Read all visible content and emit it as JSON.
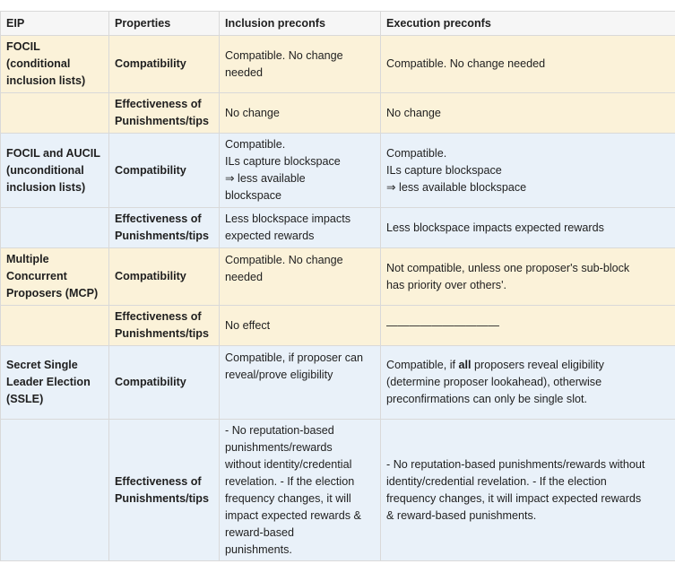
{
  "headers": [
    "EIP",
    "Properties",
    "Inclusion preconfs",
    "Execution preconfs"
  ],
  "rows": [
    {
      "eip": [
        "FOCIL",
        "(conditional",
        "inclusion lists)"
      ],
      "property": "Compatibility",
      "inclusion": [
        "Compatible. No change",
        "needed"
      ],
      "execution": [
        "Compatible. No change needed"
      ]
    },
    {
      "eip": [],
      "property": "Effectiveness of Punishments/tips",
      "inclusion": [
        "No change"
      ],
      "execution": [
        "No change"
      ]
    },
    {
      "eip": [
        "FOCIL and AUCIL",
        "(unconditional",
        "inclusion lists)"
      ],
      "property": "Compatibility",
      "inclusion": [
        "Compatible.",
        "ILs capture blockspace",
        "⇒ less available",
        "blockspace"
      ],
      "execution": [
        "Compatible.",
        "ILs capture blockspace",
        "⇒ less available blockspace"
      ]
    },
    {
      "eip": [],
      "property": "Effectiveness of Punishments/tips",
      "inclusion": [
        "Less blockspace impacts",
        "expected rewards"
      ],
      "execution": [
        "Less blockspace impacts expected rewards"
      ]
    },
    {
      "eip": [
        "Multiple",
        "Concurrent",
        "Proposers (MCP)"
      ],
      "property": "Compatibility",
      "inclusion": [
        "Compatible. No change",
        "needed"
      ],
      "execution": [
        "Not compatible, unless one proposer's sub-block",
        "has priority over others'."
      ]
    },
    {
      "eip": [],
      "property": "Effectiveness of Punishments/tips",
      "inclusion": [
        "No effect"
      ],
      "execution": [
        "——————————"
      ]
    },
    {
      "eip": [
        "Secret Single",
        "Leader Election",
        "(SSLE)"
      ],
      "property": "Compatibility",
      "inclusion": [
        "Compatible, if proposer can",
        "reveal/prove eligibility"
      ],
      "execution_parts": {
        "pre": "Compatible, if ",
        "bold": "all",
        "post": " proposers reveal eligibility"
      },
      "execution": [
        "(determine proposer lookahead), otherwise",
        "preconfirmations can only be single slot."
      ]
    },
    {
      "eip": [],
      "property": "Effectiveness of Punishments/tips",
      "inclusion": [
        "- No reputation-based",
        "punishments/rewards",
        "without identity/credential",
        "revelation. - If the election",
        "frequency changes, it will",
        "impact expected rewards &",
        "reward-based",
        "punishments."
      ],
      "execution": [
        "- No reputation-based punishments/rewards without",
        "identity/credential revelation. - If the election",
        "frequency changes, it will impact expected rewards",
        "& reward-based punishments."
      ]
    }
  ]
}
